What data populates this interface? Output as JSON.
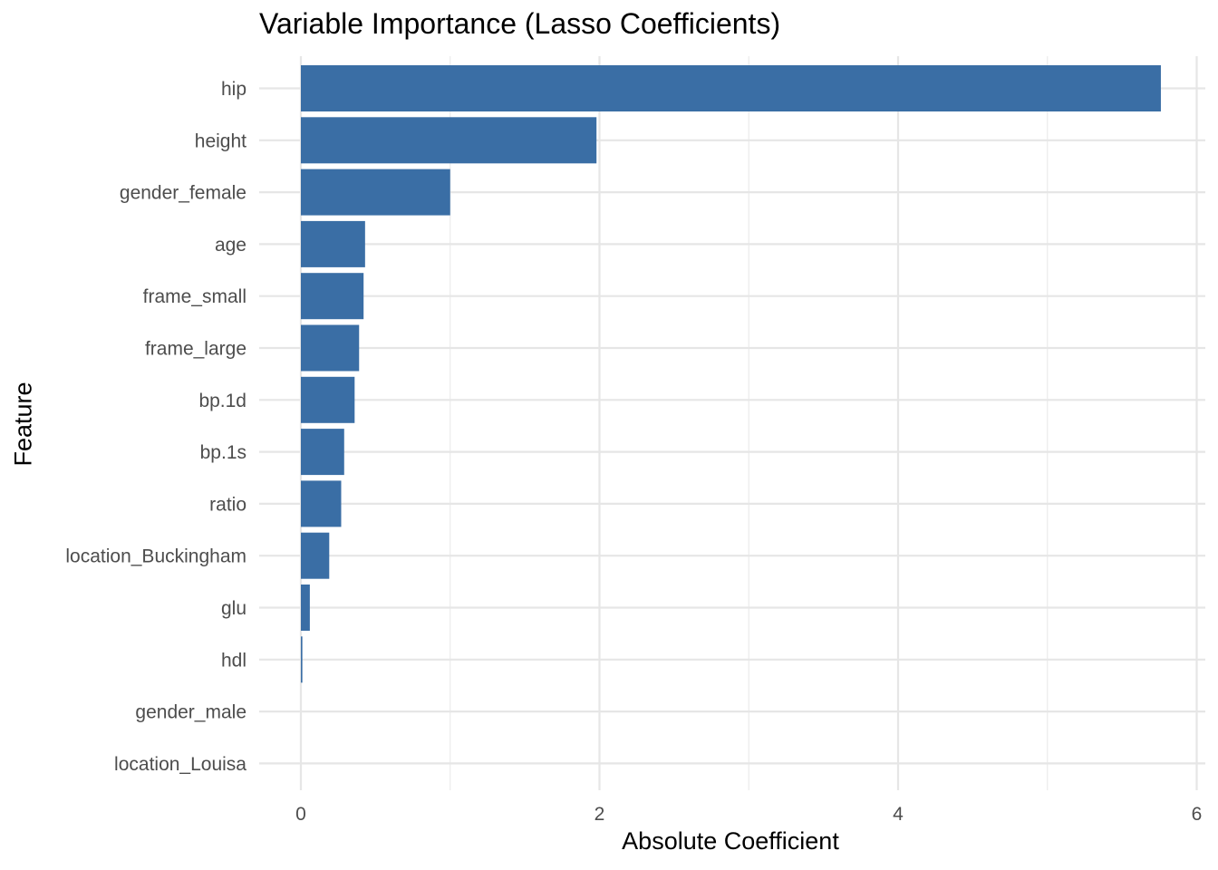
{
  "chart_data": {
    "type": "bar",
    "orientation": "horizontal",
    "title": "Variable Importance (Lasso Coefficients)",
    "xlabel": "Absolute Coefficient",
    "ylabel": "Feature",
    "xlim": [
      0,
      6
    ],
    "x_ticks": [
      0,
      2,
      4,
      6
    ],
    "grid": true,
    "bar_color": "#3A6EA5",
    "categories": [
      "hip",
      "height",
      "gender_female",
      "age",
      "frame_small",
      "frame_large",
      "bp.1d",
      "bp.1s",
      "ratio",
      "location_Buckingham",
      "glu",
      "hdl",
      "gender_male",
      "location_Louisa"
    ],
    "values": [
      5.76,
      1.98,
      1.0,
      0.43,
      0.42,
      0.39,
      0.36,
      0.29,
      0.27,
      0.19,
      0.06,
      0.01,
      0.0,
      0.0
    ]
  }
}
